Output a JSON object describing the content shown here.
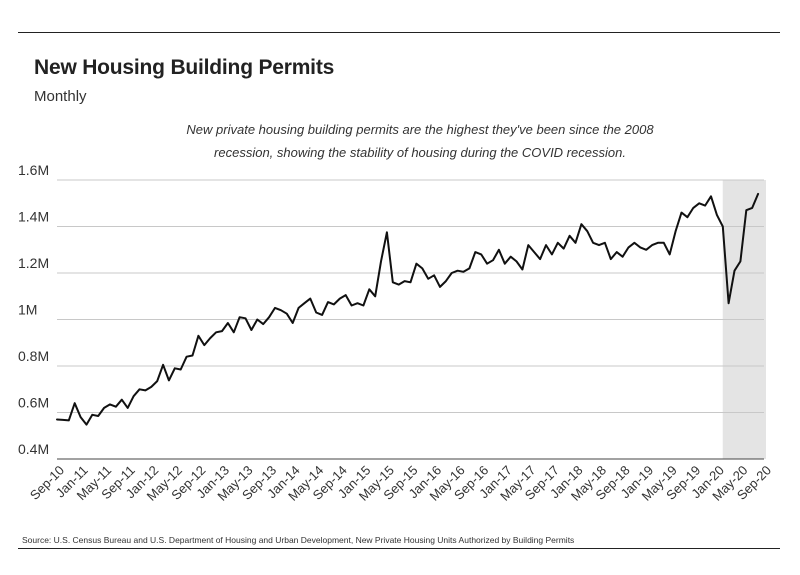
{
  "header": {
    "title": "New Housing Building Permits",
    "subtitle": "Monthly"
  },
  "annotation": {
    "line1": "New private housing building permits are the highest they've been since the 2008",
    "line2": "recession, showing the stability of housing during the COVID recession."
  },
  "source": "Source:  U.S. Census Bureau and U.S. Department of Housing and Urban Development, New Private Housing Units Authorized by Building Permits",
  "chart_data": {
    "type": "line",
    "title": "New Housing Building Permits",
    "subtitle": "Monthly",
    "xlabel": "",
    "ylabel": "",
    "ylim": [
      400000,
      1600000
    ],
    "grid": "horizontal",
    "y_ticks": [
      400000,
      600000,
      800000,
      1000000,
      1200000,
      1400000,
      1600000
    ],
    "y_tick_labels": [
      "0.4M",
      "0.6M",
      "0.8M",
      "1M",
      "1.2M",
      "1.4M",
      "1.6M"
    ],
    "x_start": "2010-09",
    "x_end": "2020-09",
    "x_tick_labels": [
      "Sep-10",
      "Jan-11",
      "May-11",
      "Sep-11",
      "Jan-12",
      "May-12",
      "Sep-12",
      "Jan-13",
      "May-13",
      "Sep-13",
      "Jan-14",
      "May-14",
      "Sep-14",
      "Jan-15",
      "May-15",
      "Sep-15",
      "Jan-16",
      "May-16",
      "Sep-16",
      "Jan-17",
      "May-17",
      "Sep-17",
      "Jan-18",
      "May-18",
      "Sep-18",
      "Jan-19",
      "May-19",
      "Sep-19",
      "Jan-20",
      "May-20",
      "Sep-20"
    ],
    "highlight_range": [
      "2020-02",
      "2020-09"
    ],
    "line_color": "#111111",
    "highlight_color": "#e4e4e4",
    "series": [
      {
        "values": [
          570000,
          568000,
          566000,
          640000,
          580000,
          548000,
          590000,
          585000,
          620000,
          635000,
          625000,
          655000,
          620000,
          670000,
          700000,
          695000,
          710000,
          735000,
          805000,
          738000,
          790000,
          785000,
          840000,
          845000,
          930000,
          890000,
          920000,
          945000,
          950000,
          985000,
          945000,
          1010000,
          1005000,
          955000,
          1000000,
          980000,
          1010000,
          1050000,
          1040000,
          1025000,
          985000,
          1050000,
          1070000,
          1090000,
          1030000,
          1020000,
          1075000,
          1065000,
          1090000,
          1105000,
          1060000,
          1070000,
          1060000,
          1130000,
          1100000,
          1250000,
          1375000,
          1160000,
          1150000,
          1165000,
          1160000,
          1240000,
          1220000,
          1175000,
          1190000,
          1140000,
          1165000,
          1200000,
          1210000,
          1205000,
          1220000,
          1290000,
          1280000,
          1240000,
          1255000,
          1300000,
          1240000,
          1270000,
          1250000,
          1215000,
          1320000,
          1290000,
          1260000,
          1320000,
          1280000,
          1330000,
          1305000,
          1360000,
          1330000,
          1410000,
          1380000,
          1330000,
          1320000,
          1330000,
          1260000,
          1290000,
          1270000,
          1310000,
          1330000,
          1310000,
          1300000,
          1320000,
          1330000,
          1330000,
          1280000,
          1380000,
          1460000,
          1440000,
          1480000,
          1500000,
          1490000,
          1530000,
          1450000,
          1400000,
          1070000,
          1210000,
          1250000,
          1470000,
          1480000,
          1540000
        ]
      }
    ]
  }
}
